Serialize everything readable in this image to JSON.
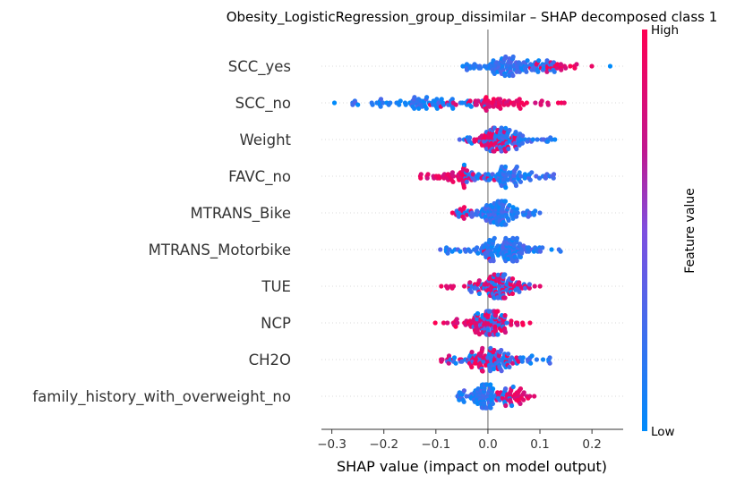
{
  "chart_data": {
    "type": "scatter",
    "subtype": "shap-beeswarm",
    "title": "Obesity_LogisticRegression_group_dissimilar – SHAP decomposed class 1",
    "xlabel": "SHAP value (impact on model output)",
    "xlim": [
      -0.32,
      0.26
    ],
    "xticks": [
      -0.3,
      -0.2,
      -0.1,
      0.0,
      0.1,
      0.2
    ],
    "xtick_labels": [
      "−0.3",
      "−0.2",
      "−0.1",
      "0.0",
      "0.1",
      "0.2"
    ],
    "colorbar": {
      "label": "Feature value",
      "high_label": "High",
      "low_label": "Low",
      "high_color": "#ff0052",
      "low_color": "#008bfb"
    },
    "features": [
      {
        "name": "SCC_yes",
        "lo_min": -0.05,
        "lo_max": 0.13,
        "hi_min": 0.08,
        "hi_max": 0.2,
        "hi_frac": 0.18,
        "outliers": [
          {
            "x": 0.235,
            "v": 0.0
          }
        ]
      },
      {
        "name": "SCC_no",
        "lo_min": -0.26,
        "lo_max": 0.0,
        "hi_min": -0.12,
        "hi_max": 0.15,
        "hi_frac": 0.55,
        "outliers": [
          {
            "x": -0.295,
            "v": 0.0
          },
          {
            "x": -0.25,
            "v": 0.0
          },
          {
            "x": -0.15,
            "v": 0.0
          }
        ]
      },
      {
        "name": "Weight",
        "lo_min": -0.06,
        "lo_max": 0.13,
        "hi_min": -0.05,
        "hi_max": 0.06,
        "hi_frac": 0.45
      },
      {
        "name": "FAVC_no",
        "lo_min": -0.05,
        "lo_max": 0.13,
        "hi_min": -0.13,
        "hi_max": 0.03,
        "hi_frac": 0.35
      },
      {
        "name": "MTRANS_Bike",
        "lo_min": -0.06,
        "lo_max": 0.1,
        "hi_min": -0.07,
        "hi_max": -0.03,
        "hi_frac": 0.06
      },
      {
        "name": "MTRANS_Motorbike",
        "lo_min": -0.095,
        "lo_max": 0.14,
        "hi_min": -0.02,
        "hi_max": 0.02,
        "hi_frac": 0.03
      },
      {
        "name": "TUE",
        "lo_min": -0.04,
        "lo_max": 0.08,
        "hi_min": -0.09,
        "hi_max": 0.11,
        "hi_frac": 0.5
      },
      {
        "name": "NCP",
        "lo_min": -0.04,
        "lo_max": 0.05,
        "hi_min": -0.105,
        "hi_max": 0.1,
        "hi_frac": 0.6
      },
      {
        "name": "CH2O",
        "lo_min": -0.08,
        "lo_max": 0.12,
        "hi_min": -0.09,
        "hi_max": 0.07,
        "hi_frac": 0.45
      },
      {
        "name": "family_history_with_overweight_no",
        "lo_min": -0.06,
        "lo_max": 0.05,
        "hi_min": 0.0,
        "hi_max": 0.09,
        "hi_frac": 0.3
      }
    ]
  }
}
